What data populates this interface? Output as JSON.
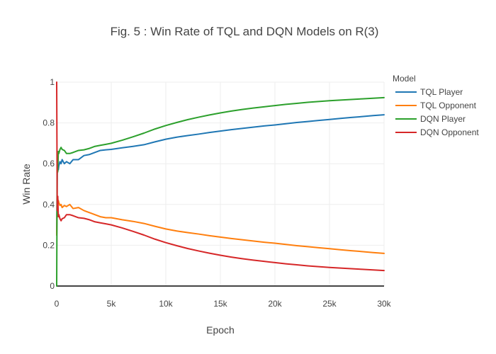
{
  "chart_data": {
    "type": "line",
    "title": "Fig. 5 : Win Rate of TQL and DQN Models on R(3)",
    "xlabel": "Epoch",
    "ylabel": "Win Rate",
    "xlim": [
      0,
      30000
    ],
    "ylim": [
      0,
      1
    ],
    "x_ticks": [
      0,
      5000,
      10000,
      15000,
      20000,
      25000,
      30000
    ],
    "x_tick_labels": [
      "0",
      "5k",
      "10k",
      "15k",
      "20k",
      "25k",
      "30k"
    ],
    "y_ticks": [
      0,
      0.2,
      0.4,
      0.6,
      0.8,
      1
    ],
    "y_tick_labels": [
      "0",
      "0.2",
      "0.4",
      "0.6",
      "0.8",
      "1"
    ],
    "grid": true,
    "legend_title": "Model",
    "legend_position": "right",
    "series": [
      {
        "name": "TQL Player",
        "color": "#1f77b4",
        "x": [
          0,
          50,
          100,
          150,
          200,
          300,
          400,
          500,
          700,
          900,
          1200,
          1500,
          2000,
          2500,
          3000,
          3500,
          4000,
          4500,
          5000,
          6000,
          7000,
          8000,
          9000,
          10000,
          11000,
          12000,
          13000,
          14000,
          15000,
          16000,
          17000,
          18000,
          19000,
          20000,
          21000,
          22000,
          23000,
          24000,
          25000,
          26000,
          27000,
          28000,
          29000,
          30000
        ],
        "y": [
          0.25,
          0.55,
          0.6,
          0.57,
          0.59,
          0.61,
          0.6,
          0.62,
          0.6,
          0.61,
          0.6,
          0.62,
          0.62,
          0.64,
          0.645,
          0.655,
          0.665,
          0.668,
          0.67,
          0.678,
          0.685,
          0.693,
          0.707,
          0.72,
          0.73,
          0.738,
          0.745,
          0.753,
          0.76,
          0.767,
          0.773,
          0.779,
          0.785,
          0.79,
          0.796,
          0.802,
          0.807,
          0.812,
          0.817,
          0.822,
          0.827,
          0.831,
          0.836,
          0.84
        ]
      },
      {
        "name": "TQL Opponent",
        "color": "#ff7f0e",
        "x": [
          0,
          50,
          100,
          150,
          200,
          300,
          400,
          500,
          700,
          900,
          1200,
          1500,
          2000,
          2500,
          3000,
          3500,
          4000,
          4500,
          5000,
          6000,
          7000,
          8000,
          9000,
          10000,
          11000,
          12000,
          13000,
          14000,
          15000,
          16000,
          17000,
          18000,
          19000,
          20000,
          21000,
          22000,
          23000,
          24000,
          25000,
          26000,
          27000,
          28000,
          29000,
          30000
        ],
        "y": [
          0.25,
          0.44,
          0.4,
          0.42,
          0.41,
          0.395,
          0.4,
          0.385,
          0.395,
          0.39,
          0.4,
          0.38,
          0.385,
          0.37,
          0.36,
          0.35,
          0.34,
          0.335,
          0.335,
          0.325,
          0.317,
          0.307,
          0.293,
          0.28,
          0.27,
          0.262,
          0.255,
          0.247,
          0.24,
          0.233,
          0.227,
          0.221,
          0.215,
          0.21,
          0.204,
          0.198,
          0.193,
          0.188,
          0.183,
          0.178,
          0.173,
          0.169,
          0.164,
          0.16
        ]
      },
      {
        "name": "DQN Player",
        "color": "#2ca02c",
        "x": [
          0,
          50,
          100,
          150,
          200,
          300,
          400,
          500,
          700,
          900,
          1200,
          1500,
          2000,
          2500,
          3000,
          3500,
          4000,
          4500,
          5000,
          6000,
          7000,
          8000,
          9000,
          10000,
          11000,
          12000,
          13000,
          14000,
          15000,
          16000,
          17000,
          18000,
          19000,
          20000,
          21000,
          22000,
          23000,
          24000,
          25000,
          26000,
          27000,
          28000,
          29000,
          30000
        ],
        "y": [
          0,
          0.63,
          0.56,
          0.66,
          0.65,
          0.67,
          0.68,
          0.67,
          0.665,
          0.65,
          0.65,
          0.655,
          0.665,
          0.668,
          0.675,
          0.685,
          0.69,
          0.695,
          0.7,
          0.715,
          0.732,
          0.75,
          0.77,
          0.787,
          0.802,
          0.816,
          0.828,
          0.839,
          0.849,
          0.858,
          0.866,
          0.873,
          0.879,
          0.885,
          0.891,
          0.896,
          0.901,
          0.905,
          0.909,
          0.912,
          0.915,
          0.918,
          0.921,
          0.924
        ]
      },
      {
        "name": "DQN Opponent",
        "color": "#d62728",
        "x": [
          0,
          50,
          100,
          150,
          200,
          300,
          400,
          500,
          700,
          900,
          1200,
          1500,
          2000,
          2500,
          3000,
          3500,
          4000,
          4500,
          5000,
          6000,
          7000,
          8000,
          9000,
          10000,
          11000,
          12000,
          13000,
          14000,
          15000,
          16000,
          17000,
          18000,
          19000,
          20000,
          21000,
          22000,
          23000,
          24000,
          25000,
          26000,
          27000,
          28000,
          29000,
          30000
        ],
        "y": [
          1,
          0.37,
          0.44,
          0.34,
          0.35,
          0.33,
          0.32,
          0.33,
          0.335,
          0.35,
          0.35,
          0.345,
          0.335,
          0.332,
          0.325,
          0.315,
          0.31,
          0.305,
          0.3,
          0.285,
          0.268,
          0.25,
          0.23,
          0.213,
          0.198,
          0.184,
          0.172,
          0.161,
          0.151,
          0.142,
          0.134,
          0.127,
          0.121,
          0.115,
          0.109,
          0.104,
          0.099,
          0.095,
          0.091,
          0.088,
          0.085,
          0.082,
          0.079,
          0.076
        ]
      }
    ]
  }
}
